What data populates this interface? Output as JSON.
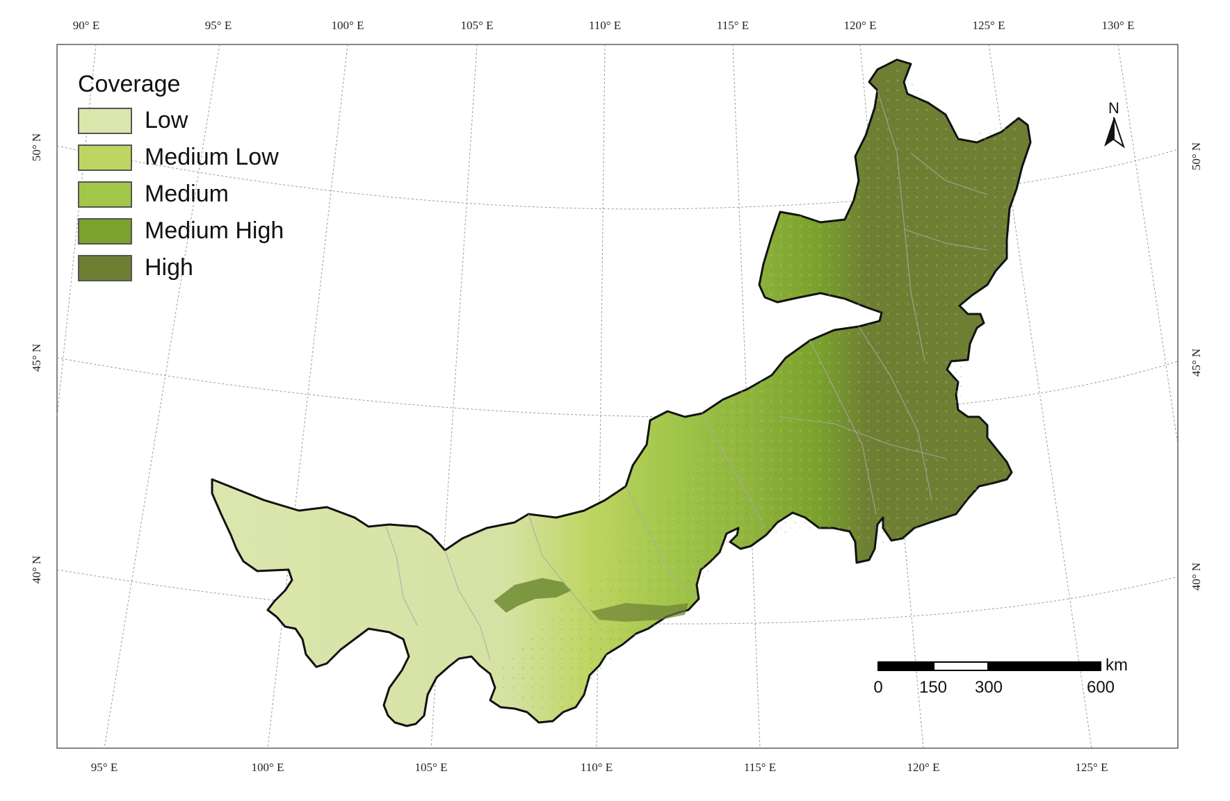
{
  "legend": {
    "title": "Coverage",
    "items": [
      {
        "label": "Low",
        "color": "#dbe6ad"
      },
      {
        "label": "Medium Low",
        "color": "#bfd563"
      },
      {
        "label": "Medium",
        "color": "#a1c64a"
      },
      {
        "label": "Medium High",
        "color": "#7ba22d"
      },
      {
        "label": "High",
        "color": "#6e7f34"
      }
    ]
  },
  "north_arrow": {
    "label": "N"
  },
  "scale_bar": {
    "unit": "km",
    "ticks": [
      "0",
      "150",
      "300",
      "600"
    ]
  },
  "axes": {
    "top_lon_labels": [
      "90° E",
      "95° E",
      "100° E",
      "105° E",
      "110° E",
      "115° E",
      "120° E",
      "125° E",
      "130° E"
    ],
    "bottom_lon_labels": [
      "95° E",
      "100° E",
      "105° E",
      "110° E",
      "115° E",
      "120° E",
      "125° E"
    ],
    "left_lat_labels": [
      "50° N",
      "45° N",
      "40° N"
    ],
    "right_lat_labels": [
      "50° N",
      "45° N",
      "40° N"
    ]
  }
}
